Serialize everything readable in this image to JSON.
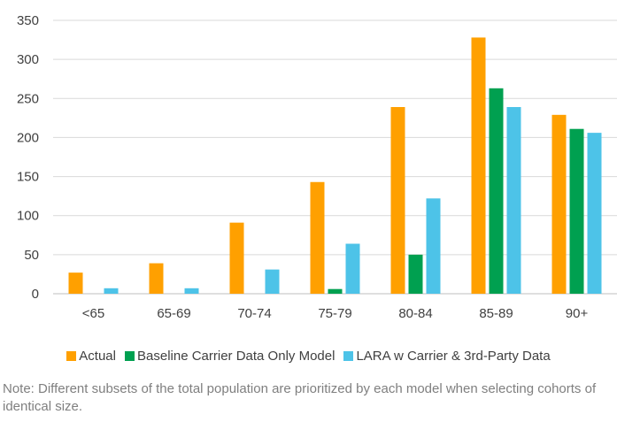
{
  "chart_data": {
    "type": "bar",
    "categories": [
      "<65",
      "65-69",
      "70-74",
      "75-79",
      "80-84",
      "85-89",
      "90+"
    ],
    "series": [
      {
        "name": "Actual",
        "color": "#FFA000",
        "values": [
          27,
          39,
          91,
          143,
          239,
          328,
          229
        ]
      },
      {
        "name": "Baseline Carrier Data Only Model",
        "color": "#00A050",
        "values": [
          0,
          0,
          0,
          6,
          50,
          263,
          211
        ]
      },
      {
        "name": "LARA w Carrier & 3rd-Party Data",
        "color": "#4DC3E8",
        "values": [
          7,
          7,
          31,
          64,
          122,
          239,
          206
        ]
      }
    ],
    "ylim": [
      0,
      350
    ],
    "yticks": [
      "0",
      "50",
      "100",
      "150",
      "200",
      "250",
      "300",
      "350"
    ],
    "grid": true,
    "legend_position": "bottom",
    "xlabel": "",
    "ylabel": ""
  },
  "note": "Note: Different subsets of the total population are prioritized by each model when selecting cohorts of identical size."
}
